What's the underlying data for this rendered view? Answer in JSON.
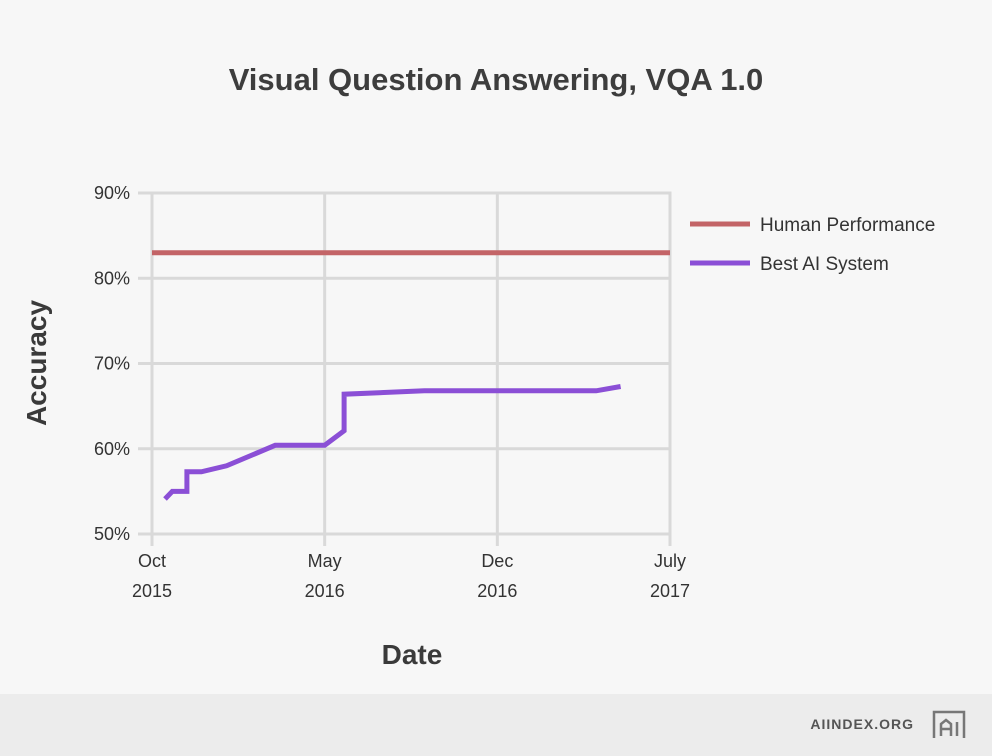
{
  "chart_data": {
    "type": "line",
    "title": "Visual Question Answering, VQA 1.0",
    "xlabel": "Date",
    "ylabel": "Accuracy",
    "ylim": [
      50,
      90
    ],
    "xlim": [
      "2015-10",
      "2017-07"
    ],
    "yticks": [
      "90%",
      "80%",
      "70%",
      "60%",
      "50%"
    ],
    "xticks": [
      {
        "month": "Oct",
        "year": "2015"
      },
      {
        "month": "May",
        "year": "2016"
      },
      {
        "month": "Dec",
        "year": "2016"
      },
      {
        "month": "July",
        "year": "2017"
      }
    ],
    "grid": true,
    "legend_position": "right",
    "series": [
      {
        "name": "Human Performance",
        "color": "#c36467",
        "x": [
          "2015-10",
          "2017-07"
        ],
        "y": [
          83.0,
          83.0
        ]
      },
      {
        "name": "Best AI System",
        "color": "#8b4fd6",
        "x": [
          "2015-10-17",
          "2015-10-26",
          "2015-11-03",
          "2015-11-03",
          "2015-11-13",
          "2015-11-13",
          "2015-12-01",
          "2016-01-01",
          "2016-03-01",
          "2016-05-01",
          "2016-05-25",
          "2016-05-25",
          "2016-09-01",
          "2016-11-01",
          "2017-04-01",
          "2017-05-01"
        ],
        "y": [
          54.1,
          55.0,
          55.0,
          55.0,
          55.0,
          57.3,
          57.3,
          58.0,
          60.4,
          60.4,
          62.1,
          66.4,
          66.8,
          66.8,
          66.8,
          67.3
        ]
      }
    ]
  },
  "footer": {
    "site": "AIINDEX.ORG",
    "logo_text": "AI"
  }
}
